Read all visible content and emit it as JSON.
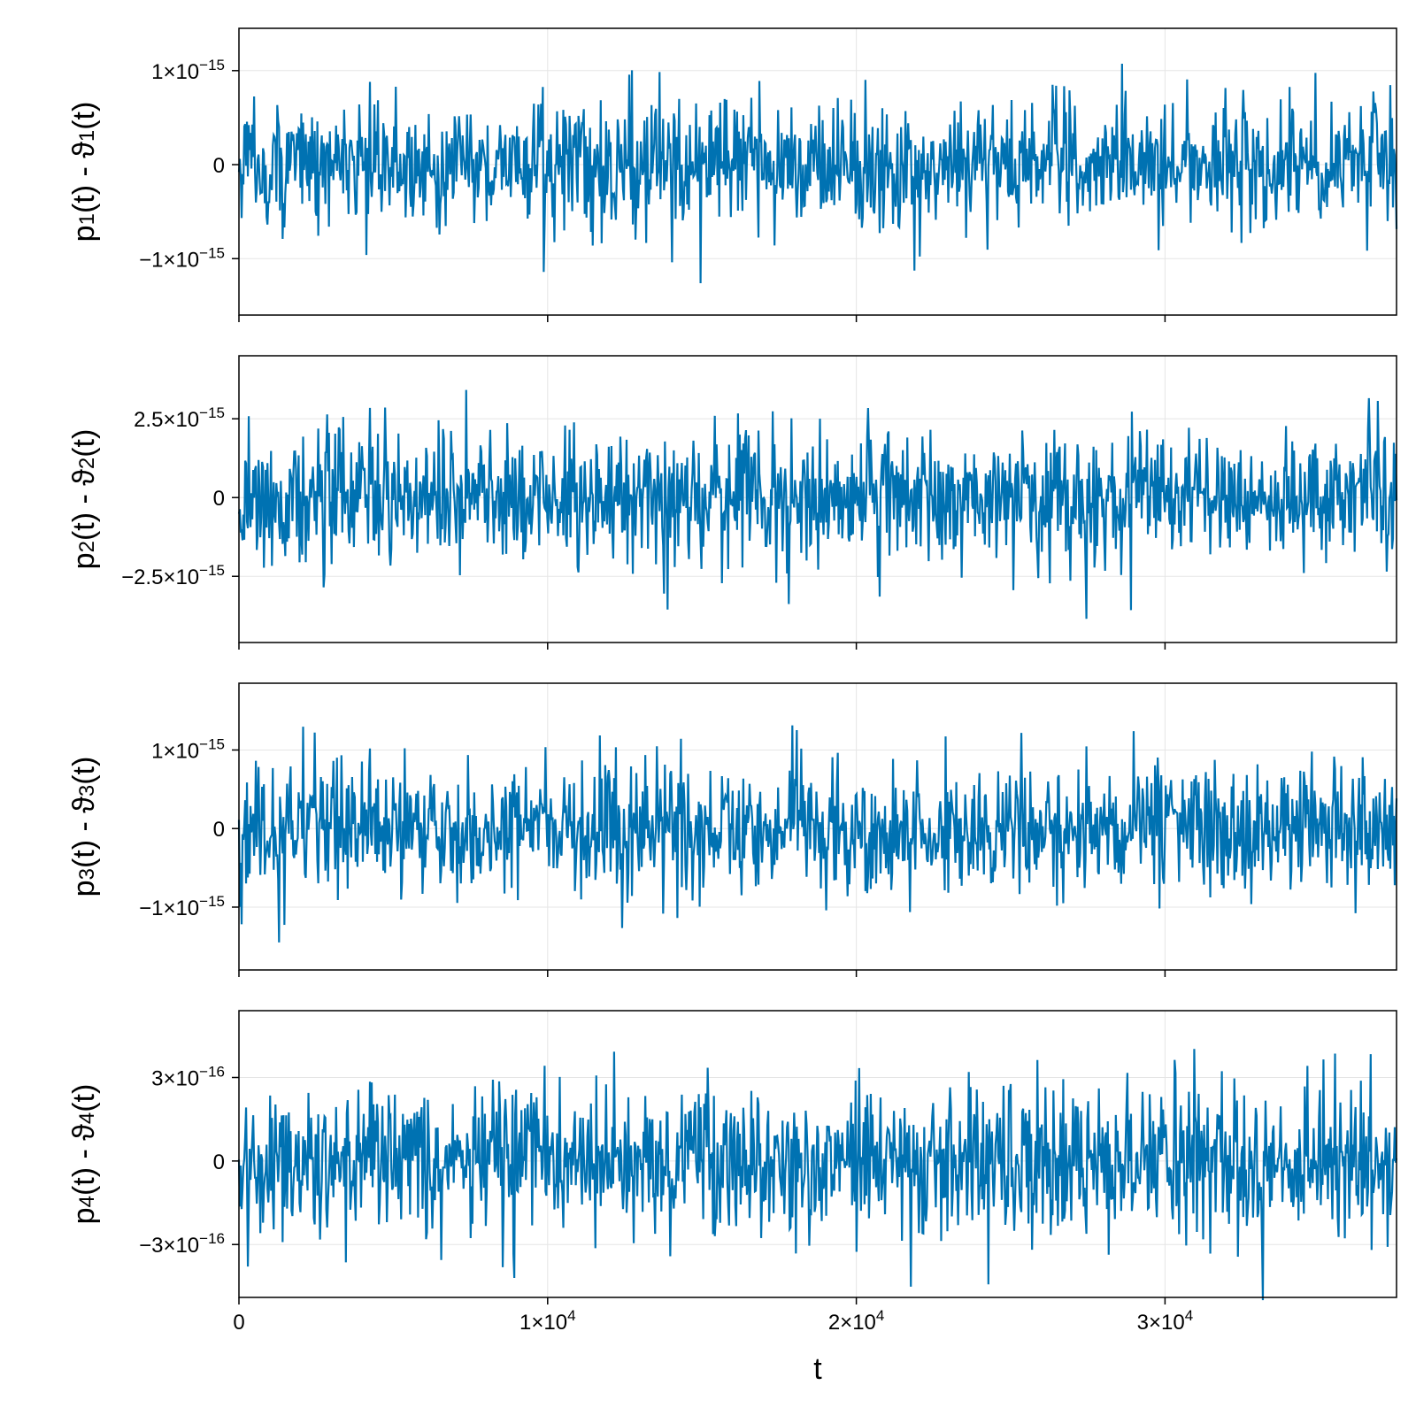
{
  "chart_data": {
    "type": "line",
    "xlabel": "t",
    "xlim": [
      0,
      37500
    ],
    "grid": true,
    "series_color": "#0072b2",
    "xticks": [
      {
        "value": 0,
        "mant": "0",
        "exp": ""
      },
      {
        "value": 10000,
        "mant": "1×10",
        "exp": "4"
      },
      {
        "value": 20000,
        "mant": "2×10",
        "exp": "4"
      },
      {
        "value": 30000,
        "mant": "3×10",
        "exp": "4"
      }
    ],
    "panels": [
      {
        "ylabel": {
          "a": "p",
          "sub1": "1",
          "b": "(t) - ϑ",
          "sub2": "1",
          "c": "(t)"
        },
        "ylim": [
          -1.6e-15,
          1.45e-15
        ],
        "yticks": [
          {
            "value": 1e-15,
            "mant": "1×10",
            "exp": "−15"
          },
          {
            "value": 0,
            "mant": "0",
            "exp": ""
          },
          {
            "value": -1e-15,
            "mant": "−1×10",
            "exp": "−15"
          }
        ],
        "amplitude": 1.35e-15,
        "noise_sd": 3.4e-16
      },
      {
        "ylabel": {
          "a": "p",
          "sub1": "2",
          "b": "(t) - ϑ",
          "sub2": "2",
          "c": "(t)"
        },
        "ylim": [
          -4.6e-15,
          4.5e-15
        ],
        "yticks": [
          {
            "value": 2.5e-15,
            "mant": "2.5×10",
            "exp": "−15"
          },
          {
            "value": 0,
            "mant": "0",
            "exp": ""
          },
          {
            "value": -2.5e-15,
            "mant": "−2.5×10",
            "exp": "−15"
          }
        ],
        "amplitude": 4.2e-15,
        "noise_sd": 1.1e-15
      },
      {
        "ylabel": {
          "a": "p",
          "sub1": "3",
          "b": "(t) - ϑ",
          "sub2": "3",
          "c": "(t)"
        },
        "ylim": [
          -1.8e-15,
          1.85e-15
        ],
        "yticks": [
          {
            "value": 1e-15,
            "mant": "1×10",
            "exp": "−15"
          },
          {
            "value": 0,
            "mant": "0",
            "exp": ""
          },
          {
            "value": -1e-15,
            "mant": "−1×10",
            "exp": "−15"
          }
        ],
        "amplitude": 1.65e-15,
        "noise_sd": 4.2e-16
      },
      {
        "ylabel": {
          "a": "p",
          "sub1": "4",
          "b": "(t) - ϑ",
          "sub2": "4",
          "c": "(t)"
        },
        "ylim": [
          -4.9e-16,
          5.4e-16
        ],
        "yticks": [
          {
            "value": 3e-16,
            "mant": "3×10",
            "exp": "−16"
          },
          {
            "value": 0,
            "mant": "0",
            "exp": ""
          },
          {
            "value": -3e-16,
            "mant": "−3×10",
            "exp": "−16"
          }
        ],
        "amplitude": 5e-16,
        "noise_sd": 1.35e-16
      }
    ]
  }
}
